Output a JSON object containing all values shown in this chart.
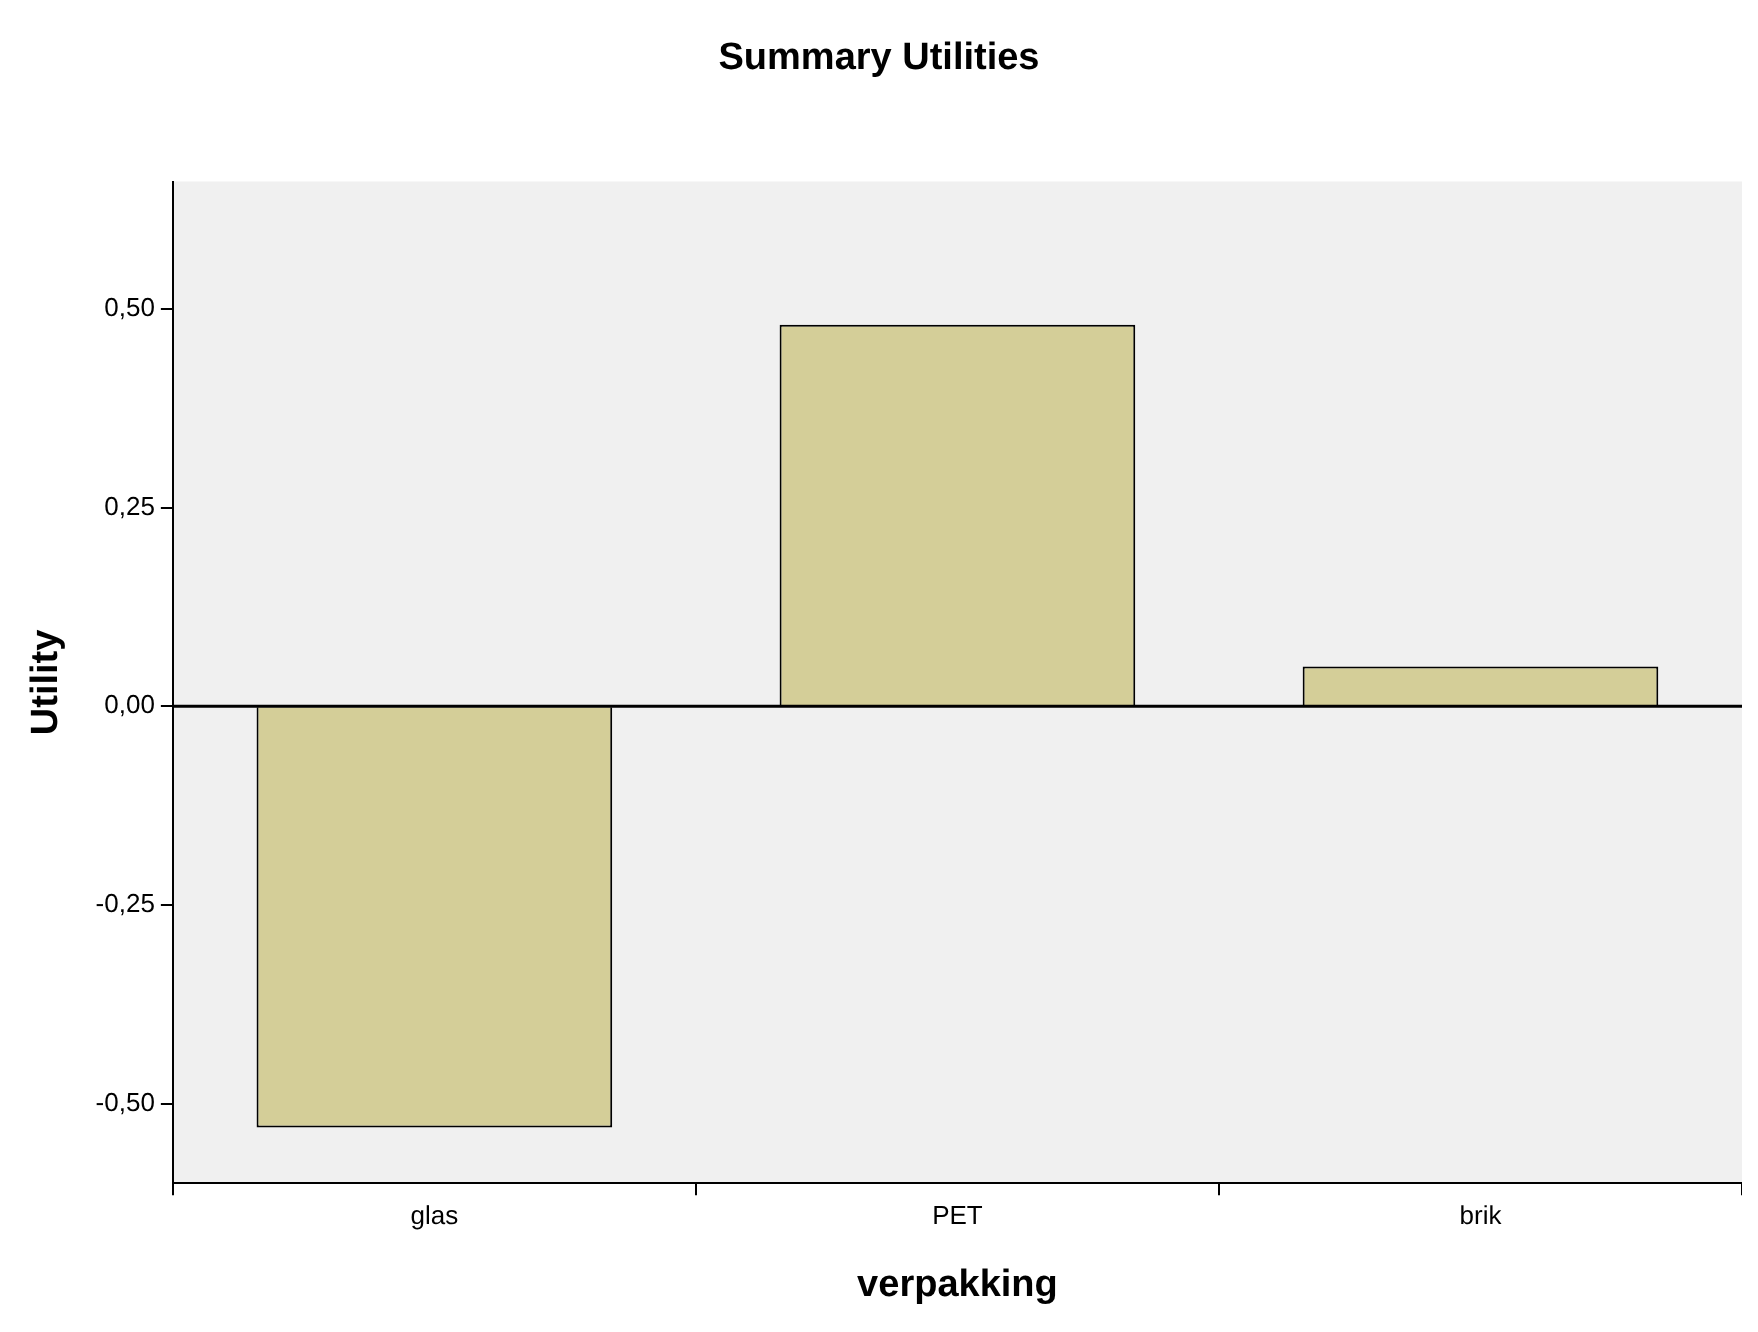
{
  "chart_data": {
    "type": "bar",
    "title": "Summary Utilities",
    "xlabel": "verpakking",
    "ylabel": "Utility",
    "categories": [
      "glas",
      "PET",
      "brik"
    ],
    "values": [
      -0.53,
      0.48,
      0.05
    ],
    "color": "#d4ce98",
    "ylim": [
      -0.6,
      0.66
    ],
    "yticks": [
      {
        "value": -0.5,
        "label": "-0,50"
      },
      {
        "value": -0.25,
        "label": "-0,25"
      },
      {
        "value": 0,
        "label": "0,00"
      },
      {
        "value": 0.25,
        "label": "0,25"
      },
      {
        "value": 0.5,
        "label": "0,50"
      }
    ],
    "ref_lines": [
      {
        "axis": "y",
        "value": 0,
        "color": "#000000"
      }
    ],
    "grid": false,
    "legend": false
  }
}
